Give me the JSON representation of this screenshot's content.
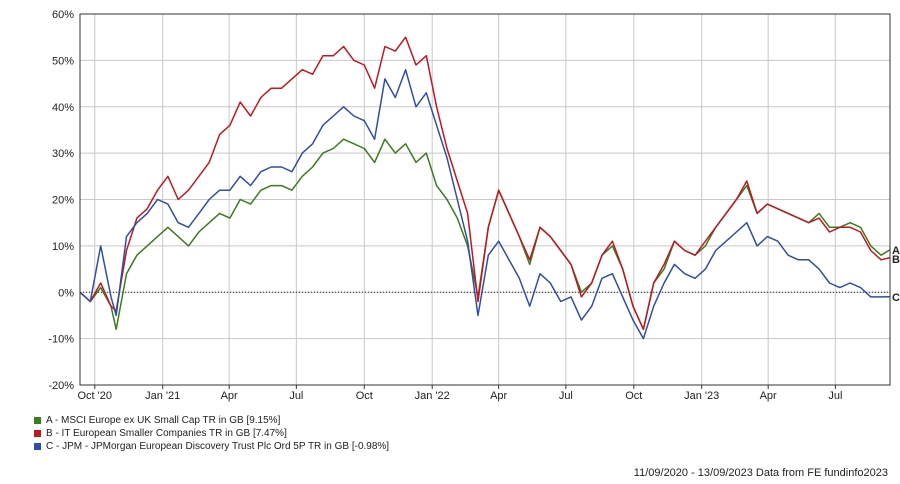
{
  "chart_data": {
    "type": "line",
    "title": "",
    "xlabel": "",
    "ylabel": "",
    "ylim": [
      -20,
      60
    ],
    "yticks": [
      -20,
      -10,
      0,
      10,
      20,
      30,
      40,
      50,
      60
    ],
    "ytick_labels": [
      "-20%",
      "-10%",
      "0%",
      "10%",
      "20%",
      "30%",
      "40%",
      "50%",
      "60%"
    ],
    "xlim": [
      "2020-09-11",
      "2023-09-13"
    ],
    "xticks": [
      {
        "date": "2020-10-01",
        "label": "Oct '20"
      },
      {
        "date": "2021-01-01",
        "label": "Jan '21"
      },
      {
        "date": "2021-04-01",
        "label": "Apr"
      },
      {
        "date": "2021-07-01",
        "label": "Jul"
      },
      {
        "date": "2021-10-01",
        "label": "Oct"
      },
      {
        "date": "2022-01-01",
        "label": "Jan '22"
      },
      {
        "date": "2022-04-01",
        "label": "Apr"
      },
      {
        "date": "2022-07-01",
        "label": "Jul"
      },
      {
        "date": "2022-10-01",
        "label": "Oct"
      },
      {
        "date": "2023-01-01",
        "label": "Jan '23"
      },
      {
        "date": "2023-04-01",
        "label": "Apr"
      },
      {
        "date": "2023-07-01",
        "label": "Jul"
      }
    ],
    "grid": true,
    "zero_line": "dotted",
    "legend_position": "bottom-left",
    "x_dates": [
      "2020-09-11",
      "2020-09-25",
      "2020-10-09",
      "2020-10-23",
      "2020-10-30",
      "2020-11-13",
      "2020-11-27",
      "2020-12-11",
      "2020-12-25",
      "2021-01-08",
      "2021-01-22",
      "2021-02-05",
      "2021-02-19",
      "2021-03-05",
      "2021-03-19",
      "2021-04-02",
      "2021-04-16",
      "2021-04-30",
      "2021-05-14",
      "2021-05-28",
      "2021-06-11",
      "2021-06-25",
      "2021-07-09",
      "2021-07-23",
      "2021-08-06",
      "2021-08-20",
      "2021-09-03",
      "2021-09-17",
      "2021-10-01",
      "2021-10-15",
      "2021-10-29",
      "2021-11-12",
      "2021-11-26",
      "2021-12-10",
      "2021-12-24",
      "2022-01-07",
      "2022-01-21",
      "2022-02-04",
      "2022-02-18",
      "2022-03-04",
      "2022-03-18",
      "2022-04-01",
      "2022-04-15",
      "2022-04-29",
      "2022-05-13",
      "2022-05-27",
      "2022-06-10",
      "2022-06-24",
      "2022-07-08",
      "2022-07-22",
      "2022-08-05",
      "2022-08-19",
      "2022-09-02",
      "2022-09-16",
      "2022-09-30",
      "2022-10-14",
      "2022-10-28",
      "2022-11-11",
      "2022-11-25",
      "2022-12-09",
      "2022-12-23",
      "2023-01-06",
      "2023-01-20",
      "2023-02-03",
      "2023-02-17",
      "2023-03-03",
      "2023-03-17",
      "2023-03-31",
      "2023-04-14",
      "2023-04-28",
      "2023-05-12",
      "2023-05-26",
      "2023-06-09",
      "2023-06-23",
      "2023-07-07",
      "2023-07-21",
      "2023-08-04",
      "2023-08-18",
      "2023-09-01",
      "2023-09-13"
    ],
    "series": [
      {
        "name": "A - MSCI Europe ex UK Small Cap TR in GB [9.15%]",
        "end_label": "A",
        "color": "#3a7d1e",
        "values": [
          0,
          -2,
          1,
          -3,
          -8,
          4,
          8,
          10,
          12,
          14,
          12,
          10,
          13,
          15,
          17,
          16,
          20,
          19,
          22,
          23,
          23,
          22,
          25,
          27,
          30,
          31,
          33,
          32,
          31,
          28,
          33,
          30,
          32,
          28,
          30,
          23,
          20,
          16,
          10,
          -1,
          14,
          22,
          17,
          12,
          6,
          14,
          12,
          9,
          6,
          0,
          2,
          8,
          10,
          5,
          -3,
          -8,
          2,
          5,
          11,
          9,
          8,
          10,
          14,
          17,
          20,
          23,
          17,
          19,
          18,
          17,
          16,
          15,
          17,
          14,
          14,
          15,
          14,
          10,
          8,
          9.15
        ]
      },
      {
        "name": "B - IT European Smaller Companies TR in GB [7.47%]",
        "end_label": "B",
        "color": "#c01820",
        "values": [
          0,
          -2,
          2,
          -3,
          -4,
          9,
          16,
          18,
          22,
          25,
          20,
          22,
          25,
          28,
          34,
          36,
          41,
          38,
          42,
          44,
          44,
          46,
          48,
          47,
          51,
          51,
          53,
          50,
          49,
          44,
          53,
          52,
          55,
          49,
          51,
          40,
          31,
          24,
          17,
          -2,
          14,
          22,
          17,
          12,
          7,
          14,
          12,
          9,
          6,
          -1,
          2,
          8,
          11,
          5,
          -3,
          -8,
          2,
          6,
          11,
          9,
          8,
          11,
          14,
          17,
          20,
          24,
          17,
          19,
          18,
          17,
          16,
          15,
          16,
          13,
          14,
          14,
          13,
          9,
          7,
          7.47
        ]
      },
      {
        "name": "C - JPM - JPMorgan European Discovery Trust Plc Ord 5P TR in GB [-0.98%]",
        "end_label": "C",
        "color": "#2f4fa6",
        "values": [
          0,
          -2,
          10,
          -1,
          -5,
          12,
          15,
          17,
          20,
          19,
          15,
          14,
          17,
          20,
          22,
          22,
          25,
          23,
          26,
          27,
          27,
          26,
          30,
          32,
          36,
          38,
          40,
          38,
          37,
          33,
          46,
          42,
          48,
          40,
          43,
          36,
          29,
          20,
          11,
          -5,
          8,
          11,
          7,
          3,
          -3,
          4,
          2,
          -2,
          -1,
          -6,
          -3,
          3,
          4,
          -1,
          -6,
          -10,
          -3,
          2,
          6,
          4,
          3,
          5,
          9,
          11,
          13,
          15,
          10,
          12,
          11,
          8,
          7,
          7,
          5,
          2,
          1,
          2,
          1,
          -1,
          -1,
          -0.98
        ]
      }
    ]
  },
  "legend": {
    "items": [
      {
        "label": "A - MSCI Europe ex UK Small Cap TR in GB [9.15%]",
        "color": "#3a7d1e"
      },
      {
        "label": "B - IT European Smaller Companies TR in GB [7.47%]",
        "color": "#c01820"
      },
      {
        "label": "C - JPM - JPMorgan European Discovery Trust Plc Ord 5P TR in GB [-0.98%]",
        "color": "#2f4fa6"
      }
    ]
  },
  "footer": {
    "text": "11/09/2020 - 13/09/2023 Data from FE fundinfo2023"
  }
}
